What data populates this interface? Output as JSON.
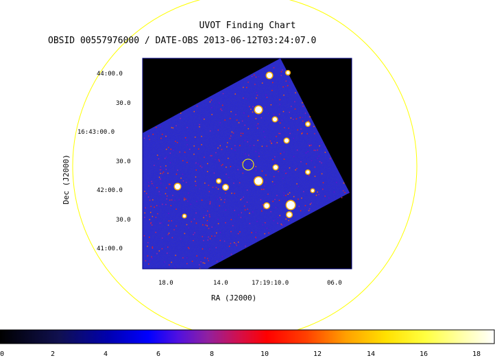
{
  "header": {
    "title": "UVOT Finding Chart",
    "subtitle": "OBSID 00557976000 / DATE-OBS 2013-06-12T03:24:07.0"
  },
  "axes": {
    "xlabel": "RA (J2000)",
    "ylabel": "Dec (J2000)",
    "x_ticks": [
      "18.0",
      "14.0",
      "17:19:10.0",
      "06.0"
    ],
    "y_ticks": [
      "44:00.0",
      "30.0",
      "16:43:00.0",
      "30.0",
      "42:00.0",
      "30.0",
      "41:00.0"
    ]
  },
  "colorbar": {
    "labels": [
      "0",
      "2",
      "4",
      "6",
      "8",
      "10",
      "12",
      "14",
      "16",
      "18"
    ],
    "min": 0,
    "max": 19
  },
  "colors": {
    "field_circle": "#ffff00",
    "frame": "#000080",
    "background_image": "#000000",
    "exposure": "#2a2ad0"
  }
}
